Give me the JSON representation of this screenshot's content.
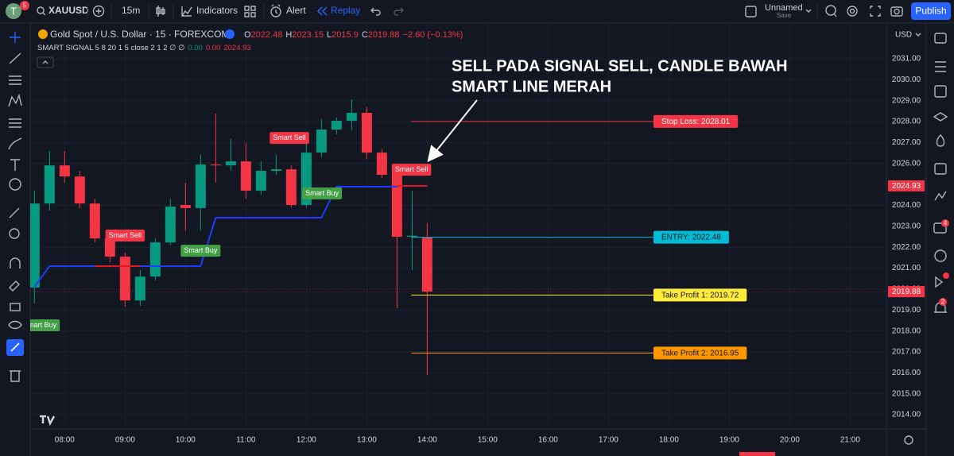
{
  "toolbar": {
    "avatar": "T",
    "notifications": "5",
    "symbol": "XAUUSD",
    "interval": "15m",
    "indicators": "Indicators",
    "alert": "Alert",
    "replay": "Replay",
    "layout_name": "Unnamed",
    "save": "Save",
    "publish": "Publish",
    "currency": "USD"
  },
  "sidebar_badges": [
    "4",
    "2"
  ],
  "annotation": [
    "SELL PADA SIGNAL SELL, CANDLE BAWAH",
    "SMART LINE MERAH"
  ],
  "chart_data": {
    "type": "candlestick",
    "title": "Gold Spot / U.S. Dollar · 15 · FOREXCOM",
    "legend": [
      {
        "key": "O",
        "value": 2022.48
      },
      {
        "key": "H",
        "value": 2023.15
      },
      {
        "key": "L",
        "value": 2015.9
      },
      {
        "key": "C",
        "value": 2019.88
      }
    ],
    "change": "−2.60 (−0.13%)",
    "indicator": {
      "name": "SMART SIGNAL 5 8 20 1 5 close 2 1 2 ∅ ∅",
      "values": [
        "0.00",
        "0.00"
      ],
      "last": 2024.93
    },
    "x": [
      7.5,
      7.75,
      8,
      8.25,
      8.5,
      8.75,
      9,
      9.25,
      9.5,
      9.75,
      10,
      10.25,
      10.5,
      10.75,
      11,
      11.25,
      11.5,
      11.75,
      12,
      12.25,
      12.5,
      12.75,
      13,
      13.25,
      13.5,
      13.75,
      14
    ],
    "open": [
      2020.07,
      2024.09,
      2025.91,
      2025.38,
      2024.09,
      2022.42,
      2021.55,
      2019.46,
      2020.6,
      2022.23,
      2024.02,
      2023.87,
      2025.95,
      2025.91,
      2026.1,
      2024.7,
      2025.65,
      2025.72,
      2024.02,
      2026.52,
      2027.62,
      2028.04,
      2028.42,
      2026.52,
      2025.46,
      2022.5,
      2022.48
    ],
    "high": [
      2024.7,
      2026.6,
      2026.6,
      2025.65,
      2024.32,
      2022.61,
      2021.74,
      2020.91,
      2022.42,
      2024.32,
      2025.08,
      2026.41,
      2028.38,
      2027.17,
      2026.98,
      2026.1,
      2026.41,
      2025.9,
      2027.17,
      2028.12,
      2028.2,
      2029.06,
      2028.69,
      2026.7,
      2025.7,
      2024.7,
      2023.15
    ],
    "low": [
      2019.31,
      2023.75,
      2025.08,
      2023.87,
      2022.23,
      2021.28,
      2019.16,
      2019.2,
      2020.4,
      2022.1,
      2022.8,
      2022.8,
      2025.08,
      2025.65,
      2024.32,
      2024.5,
      2025.46,
      2023.9,
      2023.9,
      2026.3,
      2027.4,
      2027.6,
      2026.22,
      2025.3,
      2019.08,
      2020.91,
      2015.9
    ],
    "close": [
      2024.09,
      2025.91,
      2025.38,
      2024.09,
      2022.42,
      2021.55,
      2019.46,
      2020.6,
      2022.23,
      2023.94,
      2023.87,
      2025.95,
      2025.91,
      2026.1,
      2024.7,
      2025.65,
      2025.72,
      2024.02,
      2026.52,
      2027.62,
      2028.04,
      2028.42,
      2026.52,
      2025.46,
      2022.5,
      2022.55,
      2019.88
    ],
    "up_color": "#089981",
    "down_color": "#f23645",
    "series": [
      {
        "color": "#1e3cff",
        "values": [
          2020.1,
          2021.1,
          2021.1,
          2021.1,
          2021.1,
          2021.1,
          2021.1,
          2021.1,
          2021.1,
          2021.1,
          2021.1,
          2021.1,
          2023.41,
          2023.41,
          2023.41,
          2023.41,
          2023.41,
          2023.41,
          2023.41,
          2023.41,
          2024.89,
          2024.89,
          2024.89,
          2024.89,
          2024.89,
          null,
          null
        ]
      },
      {
        "color": "#e0181f",
        "values": [
          null,
          null,
          null,
          null,
          2021.1,
          2021.1,
          2021.1,
          2021.1,
          null,
          null,
          null,
          null,
          null,
          null,
          null,
          null,
          null,
          null,
          null,
          null,
          null,
          null,
          null,
          null,
          2024.93,
          2024.93,
          2024.93
        ]
      }
    ],
    "signals": [
      {
        "label": "Smart Sell",
        "time": 9.0,
        "price": 2022.58,
        "color": "#f23645"
      },
      {
        "label": "Smart Sell",
        "time": 11.72,
        "price": 2027.24,
        "color": "#f23645"
      },
      {
        "label": "Smart Sell",
        "time": 13.74,
        "price": 2025.72,
        "color": "#f23645"
      },
      {
        "label": "Smart Buy",
        "time": 10.25,
        "price": 2021.85,
        "color": "#43a047"
      },
      {
        "label": "Smart Buy",
        "time": 12.26,
        "price": 2024.59,
        "color": "#43a047"
      },
      {
        "label": "Smart Buy",
        "time": 7.59,
        "price": 2018.29,
        "color": "#43a047"
      }
    ],
    "levels": [
      {
        "label": "Stop Loss: 2028.01",
        "value": 2028.01,
        "color": "#f23645",
        "text_color": "#ffffff"
      },
      {
        "label": "ENTRY: 2022.48",
        "value": 2022.48,
        "color": "#00bcd4",
        "text_color": "#131722"
      },
      {
        "label": "Take Profit 1: 2019.72",
        "value": 2019.72,
        "color": "#ffeb3b",
        "text_color": "#131722"
      },
      {
        "label": "Take Profit 2: 2016.95",
        "value": 2016.95,
        "color": "#ff9800",
        "text_color": "#131722"
      }
    ],
    "price_badges": [
      {
        "value": 2024.93,
        "color": "#f23645"
      },
      {
        "value": 2019.88,
        "color": "#f23645"
      }
    ],
    "xlim": [
      7.43,
      21.6
    ],
    "xticks": [
      {
        "value": 8,
        "label": "08:00"
      },
      {
        "value": 9,
        "label": "09:00"
      },
      {
        "value": 10,
        "label": "10:00"
      },
      {
        "value": 11,
        "label": "11:00"
      },
      {
        "value": 12,
        "label": "12:00"
      },
      {
        "value": 13,
        "label": "13:00"
      },
      {
        "value": 14,
        "label": "14:00"
      },
      {
        "value": 15,
        "label": "15:00"
      },
      {
        "value": 16,
        "label": "16:00"
      },
      {
        "value": 17,
        "label": "17:00"
      },
      {
        "value": 18,
        "label": "18:00"
      },
      {
        "value": 19,
        "label": "19:00"
      },
      {
        "value": 20,
        "label": "20:00"
      },
      {
        "value": 21,
        "label": "21:00"
      }
    ],
    "ylim": [
      2013.32,
      2032.67
    ],
    "yticks": [
      {
        "value": 2014,
        "label": "2014.00"
      },
      {
        "value": 2015,
        "label": "2015.00"
      },
      {
        "value": 2016,
        "label": "2016.00"
      },
      {
        "value": 2017,
        "label": "2017.00"
      },
      {
        "value": 2018,
        "label": "2018.00"
      },
      {
        "value": 2019,
        "label": "2019.00"
      },
      {
        "value": 2020,
        "label": "2020.00"
      },
      {
        "value": 2021,
        "label": "2021.00"
      },
      {
        "value": 2022,
        "label": "2022.00"
      },
      {
        "value": 2023,
        "label": "2023.00"
      },
      {
        "value": 2024,
        "label": "2024.00"
      },
      {
        "value": 2025,
        "label": "2025.00"
      },
      {
        "value": 2026,
        "label": "2026.00"
      },
      {
        "value": 2027,
        "label": "2027.00"
      },
      {
        "value": 2028,
        "label": "2028.00"
      },
      {
        "value": 2029,
        "label": "2029.00"
      },
      {
        "value": 2030,
        "label": "2030.00"
      },
      {
        "value": 2031,
        "label": "2031.00"
      }
    ]
  }
}
